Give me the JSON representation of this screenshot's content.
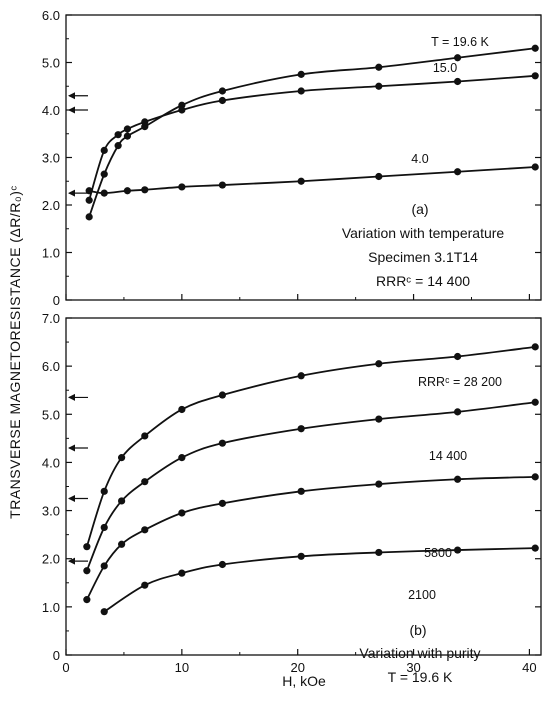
{
  "chart_data": [
    {
      "type": "line",
      "ylabel": "TRANSVERSE MAGNETORESISTANCE (ΔR/R₀)ᶜ",
      "xlim": [
        0,
        41
      ],
      "ylim": [
        0,
        6.0
      ],
      "yticks": [
        "0",
        "1.0",
        "2.0",
        "3.0",
        "4.0",
        "5.0",
        "6.0"
      ],
      "xticks": [
        "0",
        "10",
        "20",
        "30",
        "40"
      ],
      "grid": false,
      "panel_label": "(a)",
      "annotations": [
        "Variation with temperature",
        "Specimen 3.1T14",
        "RRRᶜ = 14 400"
      ],
      "arrows_y": [
        4.3,
        4.0,
        2.25
      ],
      "series": [
        {
          "name": "T = 19.6 K",
          "x": [
            2,
            3.3,
            4.5,
            5.3,
            6.8,
            10,
            13.5,
            20.3,
            27,
            33.8,
            40.5
          ],
          "y": [
            1.75,
            2.65,
            3.25,
            3.45,
            3.65,
            4.1,
            4.4,
            4.75,
            4.9,
            5.1,
            5.3
          ]
        },
        {
          "name": "15.0",
          "x": [
            2,
            3.3,
            4.5,
            5.3,
            6.8,
            10,
            13.5,
            20.3,
            27,
            33.8,
            40.5
          ],
          "y": [
            2.1,
            3.15,
            3.48,
            3.6,
            3.75,
            4.0,
            4.2,
            4.4,
            4.5,
            4.6,
            4.72
          ]
        },
        {
          "name": "4.0",
          "x": [
            2,
            3.3,
            5.3,
            6.8,
            10,
            13.5,
            20.3,
            27,
            33.8,
            40.5
          ],
          "y": [
            2.3,
            2.25,
            2.3,
            2.32,
            2.38,
            2.42,
            2.5,
            2.6,
            2.7,
            2.8
          ]
        }
      ]
    },
    {
      "type": "line",
      "xlabel": "H, kOe",
      "ylabel": "TRANSVERSE MAGNETORESISTANCE (ΔR/R₀)ᶜ",
      "xlim": [
        0,
        41
      ],
      "ylim": [
        0,
        7.0
      ],
      "yticks": [
        "0",
        "1.0",
        "2.0",
        "3.0",
        "4.0",
        "5.0",
        "6.0",
        "7.0"
      ],
      "xticks": [
        "0",
        "10",
        "20",
        "30",
        "40"
      ],
      "grid": false,
      "panel_label": "(b)",
      "annotations": [
        "Variation with purity",
        "T = 19.6 K"
      ],
      "arrows_y": [
        5.35,
        4.3,
        3.25,
        1.95
      ],
      "series": [
        {
          "name": "RRRᶜ = 28 200",
          "x": [
            1.8,
            3.3,
            4.8,
            6.8,
            10,
            13.5,
            20.3,
            27,
            33.8,
            40.5
          ],
          "y": [
            2.25,
            3.4,
            4.1,
            4.55,
            5.1,
            5.4,
            5.8,
            6.05,
            6.2,
            6.4
          ]
        },
        {
          "name": "14 400",
          "x": [
            1.8,
            3.3,
            4.8,
            6.8,
            10,
            13.5,
            20.3,
            27,
            33.8,
            40.5
          ],
          "y": [
            1.75,
            2.65,
            3.2,
            3.6,
            4.1,
            4.4,
            4.7,
            4.9,
            5.05,
            5.25
          ]
        },
        {
          "name": "5800",
          "x": [
            1.8,
            3.3,
            4.8,
            6.8,
            10,
            13.5,
            20.3,
            27,
            33.8,
            40.5
          ],
          "y": [
            1.15,
            1.85,
            2.3,
            2.6,
            2.95,
            3.15,
            3.4,
            3.55,
            3.65,
            3.7
          ]
        },
        {
          "name": "2100",
          "x": [
            3.3,
            6.8,
            10,
            13.5,
            20.3,
            27,
            33.8,
            40.5
          ],
          "y": [
            0.9,
            1.45,
            1.7,
            1.88,
            2.05,
            2.13,
            2.18,
            2.22
          ]
        }
      ]
    }
  ]
}
